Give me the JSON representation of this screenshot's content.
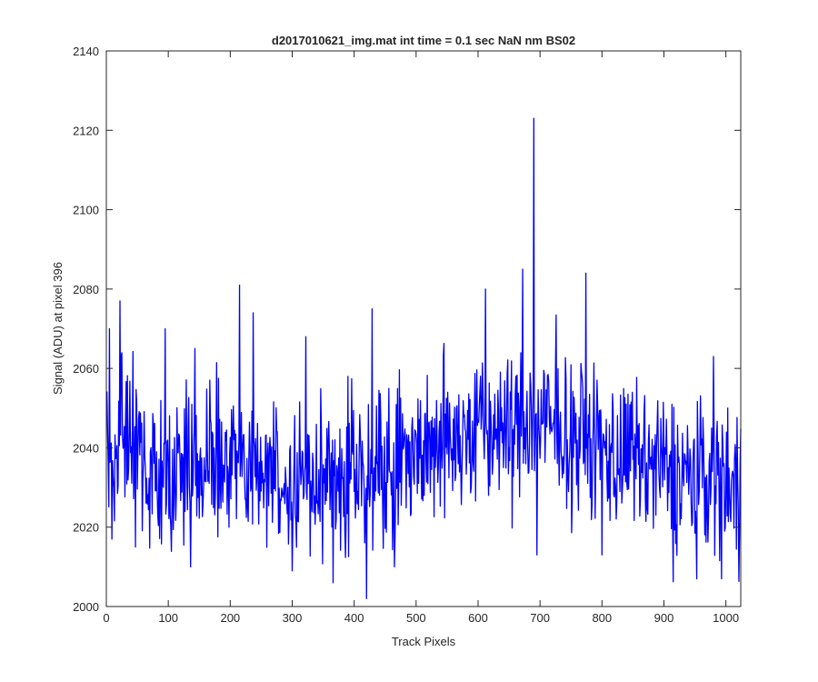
{
  "chart_data": {
    "type": "line",
    "title": "d2017010621_img.mat int time = 0.1 sec  NaN nm BS02",
    "xlabel": "Track Pixels",
    "ylabel": "Signal (ADU) at pixel 396",
    "xlim": [
      0,
      1024
    ],
    "ylim": [
      2000,
      2140
    ],
    "xticks": [
      0,
      100,
      200,
      300,
      400,
      500,
      600,
      700,
      800,
      900,
      1000
    ],
    "yticks": [
      2000,
      2020,
      2040,
      2060,
      2080,
      2100,
      2120,
      2140
    ],
    "grid": false,
    "line_color": "#0000ff",
    "series": [
      {
        "x_start": 1,
        "x_step": 1,
        "segment_means": [
          [
            1,
            2042
          ],
          [
            100,
            2035
          ],
          [
            200,
            2036
          ],
          [
            300,
            2032
          ],
          [
            400,
            2033
          ],
          [
            500,
            2040
          ],
          [
            600,
            2044
          ],
          [
            700,
            2046
          ],
          [
            800,
            2040
          ],
          [
            900,
            2034
          ],
          [
            1024,
            2032
          ]
        ],
        "noise_amplitude": 11,
        "features": [
          {
            "x": 5,
            "y": 2070
          },
          {
            "x": 9,
            "y": 2017
          },
          {
            "x": 22,
            "y": 2077
          },
          {
            "x": 47,
            "y": 2015
          },
          {
            "x": 95,
            "y": 2070
          },
          {
            "x": 136,
            "y": 2010
          },
          {
            "x": 143,
            "y": 2065
          },
          {
            "x": 215,
            "y": 2081
          },
          {
            "x": 237,
            "y": 2074
          },
          {
            "x": 300,
            "y": 2009
          },
          {
            "x": 322,
            "y": 2068
          },
          {
            "x": 366,
            "y": 2006
          },
          {
            "x": 390,
            "y": 2058
          },
          {
            "x": 420,
            "y": 2002
          },
          {
            "x": 429,
            "y": 2075
          },
          {
            "x": 465,
            "y": 2010
          },
          {
            "x": 612,
            "y": 2080
          },
          {
            "x": 672,
            "y": 2085
          },
          {
            "x": 690,
            "y": 2123
          },
          {
            "x": 695,
            "y": 2013
          },
          {
            "x": 774,
            "y": 2084
          },
          {
            "x": 800,
            "y": 2013
          },
          {
            "x": 953,
            "y": 2007
          },
          {
            "x": 980,
            "y": 2063
          },
          {
            "x": 993,
            "y": 2007
          },
          {
            "x": 1003,
            "y": 2050
          },
          {
            "x": 1022,
            "y": 2018
          }
        ]
      }
    ]
  }
}
